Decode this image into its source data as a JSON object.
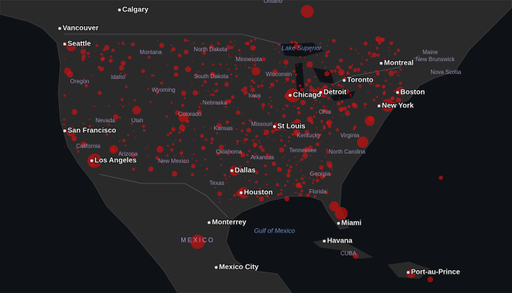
{
  "map": {
    "cities": [
      "Calgary",
      "Vancouver",
      "Seattle",
      "Montreal",
      "Toronto",
      "Chicago",
      "Detroit",
      "Boston",
      "New York",
      "St Louis",
      "San Francisco",
      "Los Angeles",
      "Dallas",
      "Houston",
      "Miami",
      "Monterrey",
      "Havana",
      "Mexico City",
      "Port-au-Prince"
    ],
    "regions": [
      "Ontario",
      "Montana",
      "North Dakota",
      "Minnesota",
      "Idaho",
      "Oregon",
      "Wyoming",
      "South Dakota",
      "Wisconsin",
      "Nebraska",
      "Iowa",
      "Ohio",
      "Nevada",
      "Utah",
      "Colorado",
      "Kansas",
      "Missouri",
      "Kentucky",
      "Virginia",
      "California",
      "Oklahoma",
      "Arkansas",
      "Tennessee",
      "North Carolina",
      "Arizona",
      "New Mexico",
      "Georgia",
      "Texas",
      "Florida",
      "New Brunswick",
      "Nova Scotia",
      "Maine",
      "CUBA"
    ],
    "countries": [
      "MEXICO"
    ],
    "water": [
      "Lake Superior",
      "Gulf of Mexico"
    ]
  }
}
